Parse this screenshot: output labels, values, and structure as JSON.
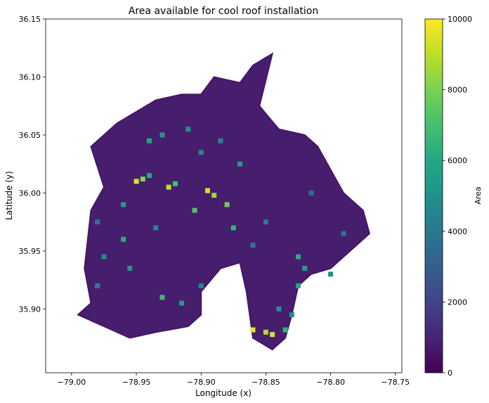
{
  "chart_data": {
    "type": "heatmap",
    "title": "Area available for cool roof installation",
    "xlabel": "Longitude (x)",
    "ylabel": "Latitude (y)",
    "xlim": [
      -79.02,
      -78.745
    ],
    "ylim": [
      35.845,
      36.15
    ],
    "x_ticks": [
      -79.0,
      -78.95,
      -78.9,
      -78.85,
      -78.8,
      -78.75
    ],
    "x_tick_labels": [
      "−79.00",
      "−78.95",
      "−78.90",
      "−78.85",
      "−78.80",
      "−78.75"
    ],
    "y_ticks": [
      35.9,
      35.95,
      36.0,
      36.05,
      36.1,
      36.15
    ],
    "y_tick_labels": [
      "35.90",
      "35.95",
      "36.00",
      "36.05",
      "36.10",
      "36.15"
    ],
    "colorbar": {
      "label": "Area",
      "colormap": "viridis",
      "range": [
        0,
        10000
      ],
      "ticks": [
        0,
        2000,
        4000,
        6000,
        8000,
        10000
      ],
      "tick_labels": [
        "0",
        "2000",
        "4000",
        "6000",
        "8000",
        "10000"
      ]
    },
    "grid": false,
    "footprint": [
      [
        -78.985,
        35.905
      ],
      [
        -78.99,
        35.935
      ],
      [
        -78.985,
        35.985
      ],
      [
        -78.975,
        36.005
      ],
      [
        -78.985,
        36.04
      ],
      [
        -78.965,
        36.06
      ],
      [
        -78.935,
        36.08
      ],
      [
        -78.915,
        36.085
      ],
      [
        -78.9,
        36.085
      ],
      [
        -78.89,
        36.1
      ],
      [
        -78.87,
        36.095
      ],
      [
        -78.86,
        36.11
      ],
      [
        -78.845,
        36.12
      ],
      [
        -78.855,
        36.075
      ],
      [
        -78.84,
        36.055
      ],
      [
        -78.82,
        36.05
      ],
      [
        -78.81,
        36.04
      ],
      [
        -78.8,
        36.02
      ],
      [
        -78.79,
        36.0
      ],
      [
        -78.775,
        35.985
      ],
      [
        -78.77,
        35.965
      ],
      [
        -78.785,
        35.95
      ],
      [
        -78.8,
        35.935
      ],
      [
        -78.815,
        35.93
      ],
      [
        -78.825,
        35.92
      ],
      [
        -78.83,
        35.895
      ],
      [
        -78.835,
        35.875
      ],
      [
        -78.845,
        35.865
      ],
      [
        -78.86,
        35.875
      ],
      [
        -78.865,
        35.915
      ],
      [
        -78.87,
        35.94
      ],
      [
        -78.885,
        35.935
      ],
      [
        -78.9,
        35.915
      ],
      [
        -78.9,
        35.895
      ],
      [
        -78.91,
        35.885
      ],
      [
        -78.935,
        35.88
      ],
      [
        -78.955,
        35.875
      ],
      [
        -78.975,
        35.885
      ],
      [
        -78.995,
        35.895
      ]
    ],
    "background_value": 800,
    "cells": [
      {
        "x": -78.95,
        "y": 36.01,
        "v": 9500
      },
      {
        "x": -78.945,
        "y": 36.012,
        "v": 8200
      },
      {
        "x": -78.94,
        "y": 36.015,
        "v": 6000
      },
      {
        "x": -78.925,
        "y": 36.005,
        "v": 9000
      },
      {
        "x": -78.92,
        "y": 36.008,
        "v": 7000
      },
      {
        "x": -78.895,
        "y": 36.002,
        "v": 9300
      },
      {
        "x": -78.89,
        "y": 35.998,
        "v": 8500
      },
      {
        "x": -78.88,
        "y": 35.99,
        "v": 7800
      },
      {
        "x": -78.905,
        "y": 35.985,
        "v": 7200
      },
      {
        "x": -78.875,
        "y": 35.97,
        "v": 6500
      },
      {
        "x": -78.94,
        "y": 36.045,
        "v": 5800
      },
      {
        "x": -78.93,
        "y": 36.05,
        "v": 5200
      },
      {
        "x": -78.91,
        "y": 36.055,
        "v": 5000
      },
      {
        "x": -78.9,
        "y": 36.035,
        "v": 4800
      },
      {
        "x": -78.87,
        "y": 36.025,
        "v": 5400
      },
      {
        "x": -78.96,
        "y": 35.96,
        "v": 6200
      },
      {
        "x": -78.975,
        "y": 35.945,
        "v": 5000
      },
      {
        "x": -78.98,
        "y": 35.92,
        "v": 4500
      },
      {
        "x": -78.955,
        "y": 35.935,
        "v": 5200
      },
      {
        "x": -78.93,
        "y": 35.91,
        "v": 6800
      },
      {
        "x": -78.915,
        "y": 35.905,
        "v": 5500
      },
      {
        "x": -78.9,
        "y": 35.92,
        "v": 4600
      },
      {
        "x": -78.86,
        "y": 35.882,
        "v": 9600
      },
      {
        "x": -78.85,
        "y": 35.88,
        "v": 8800
      },
      {
        "x": -78.845,
        "y": 35.878,
        "v": 9400
      },
      {
        "x": -78.835,
        "y": 35.882,
        "v": 6500
      },
      {
        "x": -78.825,
        "y": 35.92,
        "v": 6000
      },
      {
        "x": -78.82,
        "y": 35.935,
        "v": 5500
      },
      {
        "x": -78.825,
        "y": 35.945,
        "v": 6300
      },
      {
        "x": -78.84,
        "y": 35.9,
        "v": 5000
      },
      {
        "x": -78.83,
        "y": 35.895,
        "v": 4700
      },
      {
        "x": -78.85,
        "y": 35.975,
        "v": 4200
      },
      {
        "x": -78.86,
        "y": 35.955,
        "v": 4000
      },
      {
        "x": -78.8,
        "y": 35.93,
        "v": 4800
      },
      {
        "x": -78.79,
        "y": 35.965,
        "v": 4000
      },
      {
        "x": -78.815,
        "y": 36.0,
        "v": 3800
      },
      {
        "x": -78.98,
        "y": 35.975,
        "v": 3800
      },
      {
        "x": -78.885,
        "y": 36.045,
        "v": 4400
      },
      {
        "x": -78.96,
        "y": 35.99,
        "v": 5600
      },
      {
        "x": -78.935,
        "y": 35.97,
        "v": 4600
      }
    ]
  }
}
